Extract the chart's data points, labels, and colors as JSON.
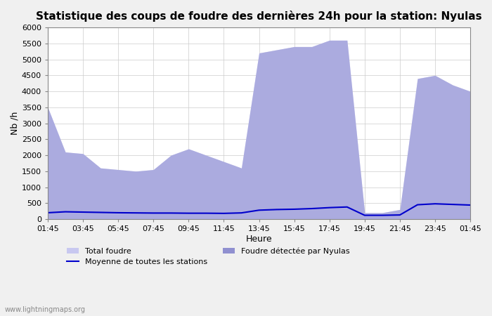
{
  "title": "Statistique des coups de foudre des dernières 24h pour la station: Nyulas",
  "xlabel": "Heure",
  "ylabel": "Nb /h",
  "watermark": "www.lightningmaps.org",
  "xlim": [
    0,
    24
  ],
  "ylim": [
    0,
    6000
  ],
  "yticks": [
    0,
    500,
    1000,
    1500,
    2000,
    2500,
    3000,
    3500,
    4000,
    4500,
    5000,
    5500,
    6000
  ],
  "xtick_labels": [
    "01:45",
    "03:45",
    "05:45",
    "07:45",
    "09:45",
    "11:45",
    "13:45",
    "15:45",
    "17:45",
    "19:45",
    "21:45",
    "23:45",
    "01:45"
  ],
  "legend": [
    "Total foudre",
    "Moyenne de toutes les stations",
    "Foudre détectée par Nyulas"
  ],
  "color_total": "#c8c8f0",
  "color_nyulas": "#9090d0",
  "color_moyenne": "#0000cc",
  "background_plot": "#ffffff",
  "background_fig": "#f0f0f0",
  "grid_color": "#cccccc",
  "time_hours": [
    0,
    1,
    2,
    3,
    4,
    5,
    6,
    7,
    8,
    9,
    10,
    11,
    12,
    13,
    14,
    15,
    16,
    17,
    18,
    19,
    20,
    21,
    22,
    23,
    24
  ],
  "total_foudre": [
    3500,
    2100,
    2050,
    1600,
    1550,
    1500,
    1550,
    2000,
    2200,
    2000,
    1800,
    1600,
    5200,
    5300,
    5400,
    5400,
    5600,
    5600,
    200,
    200,
    300,
    4400,
    4500,
    4200,
    4000
  ],
  "foudre_nyulas": [
    3500,
    2100,
    2050,
    1600,
    1550,
    1500,
    1550,
    2000,
    2200,
    2000,
    1800,
    1600,
    5200,
    5300,
    5400,
    5400,
    5600,
    5600,
    200,
    200,
    300,
    4400,
    4500,
    4200,
    4000
  ],
  "moyenne": [
    200,
    230,
    220,
    210,
    200,
    195,
    190,
    190,
    185,
    185,
    180,
    195,
    280,
    300,
    310,
    330,
    360,
    380,
    120,
    120,
    130,
    450,
    480,
    460,
    440
  ]
}
